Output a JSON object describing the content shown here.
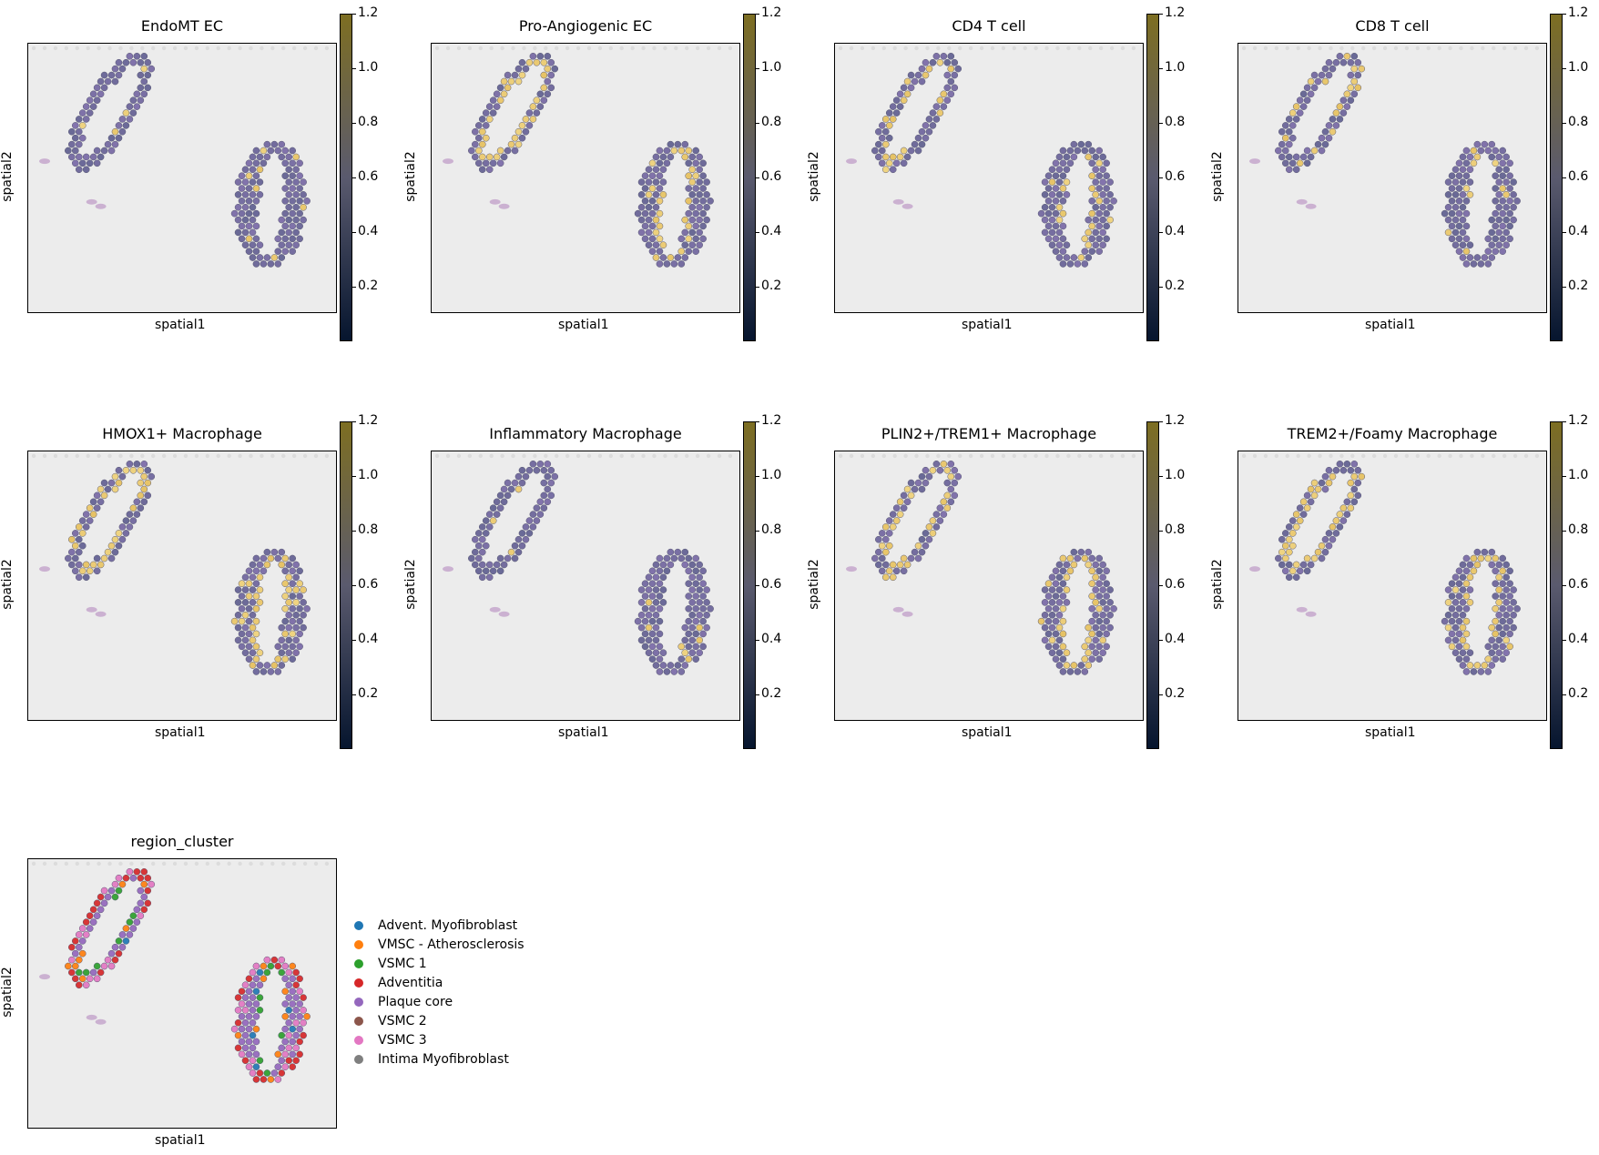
{
  "colors": {
    "low": "#06152e",
    "mid": "#5a5a6e",
    "high": "#7d6e22",
    "tissue": "#7b6aa8",
    "highlight": "#e6bf5a",
    "background": "#ececec"
  },
  "colorbar": {
    "ticks": [
      "0.2",
      "0.4",
      "0.6",
      "0.8",
      "1.0",
      "1.2"
    ],
    "range": [
      0.0,
      1.2
    ]
  },
  "chart_data": [
    {
      "type": "scatter",
      "title": "EndoMT EC",
      "xlabel": "spatial1",
      "ylabel": "spatial2",
      "colorbar_range": [
        0.0,
        1.2
      ],
      "highlight_level": 0.05
    },
    {
      "type": "scatter",
      "title": "Pro-Angiogenic EC",
      "xlabel": "spatial1",
      "ylabel": "spatial2",
      "colorbar_range": [
        0.0,
        1.2
      ],
      "highlight_level": 0.35
    },
    {
      "type": "scatter",
      "title": "CD4 T cell",
      "xlabel": "spatial1",
      "ylabel": "spatial2",
      "colorbar_range": [
        0.0,
        1.2
      ],
      "highlight_level": 0.25
    },
    {
      "type": "scatter",
      "title": "CD8 T cell",
      "xlabel": "spatial1",
      "ylabel": "spatial2",
      "colorbar_range": [
        0.0,
        1.2
      ],
      "highlight_level": 0.18
    },
    {
      "type": "scatter",
      "title": "HMOX1+ Macrophage",
      "xlabel": "spatial1",
      "ylabel": "spatial2",
      "colorbar_range": [
        0.0,
        1.2
      ],
      "highlight_level": 0.45
    },
    {
      "type": "scatter",
      "title": "Inflammatory Macrophage",
      "xlabel": "spatial1",
      "ylabel": "spatial2",
      "colorbar_range": [
        0.0,
        1.2
      ],
      "highlight_level": 0.05
    },
    {
      "type": "scatter",
      "title": "PLIN2+/TREM1+ Macrophage",
      "xlabel": "spatial1",
      "ylabel": "spatial2",
      "colorbar_range": [
        0.0,
        1.2
      ],
      "highlight_level": 0.3
    },
    {
      "type": "scatter",
      "title": "TREM2+/Foamy Macrophage",
      "xlabel": "spatial1",
      "ylabel": "spatial2",
      "colorbar_range": [
        0.0,
        1.2
      ],
      "highlight_level": 0.4
    },
    {
      "type": "scatter",
      "title": "region_cluster",
      "xlabel": "spatial1",
      "ylabel": "spatial2",
      "legend": [
        {
          "label": "Advent. Myofibroblast",
          "color": "#1f77b4"
        },
        {
          "label": "VMSC - Atherosclerosis",
          "color": "#ff7f0e"
        },
        {
          "label": "VSMC 1",
          "color": "#2ca02c"
        },
        {
          "label": "Adventitia",
          "color": "#d62728"
        },
        {
          "label": "Plaque core",
          "color": "#9467bd"
        },
        {
          "label": "VSMC 2",
          "color": "#8c564b"
        },
        {
          "label": "VSMC 3",
          "color": "#e377c2"
        },
        {
          "label": "Intima Myofibroblast",
          "color": "#7f7f7f"
        }
      ],
      "legend_position": "right"
    }
  ]
}
